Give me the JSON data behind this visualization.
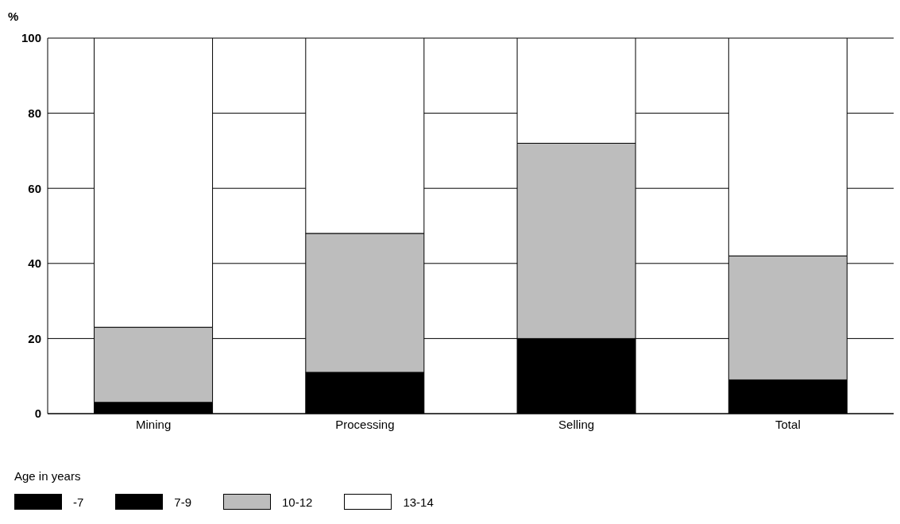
{
  "chart_data": {
    "type": "bar",
    "ylabel": "%",
    "legend_title": "Age in years",
    "categories": [
      "Mining",
      "Processing",
      "Selling",
      "Total"
    ],
    "series": [
      {
        "name": "-7",
        "color": "#000000",
        "values": [
          null,
          null,
          null,
          null
        ]
      },
      {
        "name": "7-9",
        "color": "#000000",
        "values": [
          3,
          11,
          20,
          9
        ]
      },
      {
        "name": "10-12",
        "color": "#bdbdbd",
        "values": [
          20,
          37,
          52,
          33
        ]
      },
      {
        "name": "13-14",
        "color": "#ffffff",
        "values": [
          77,
          52,
          28,
          58
        ]
      }
    ],
    "stacked": true,
    "ylim": [
      0,
      100
    ],
    "yticks": [
      0,
      20,
      40,
      60,
      80,
      100
    ],
    "grid": "y",
    "legend": "bottom left"
  }
}
